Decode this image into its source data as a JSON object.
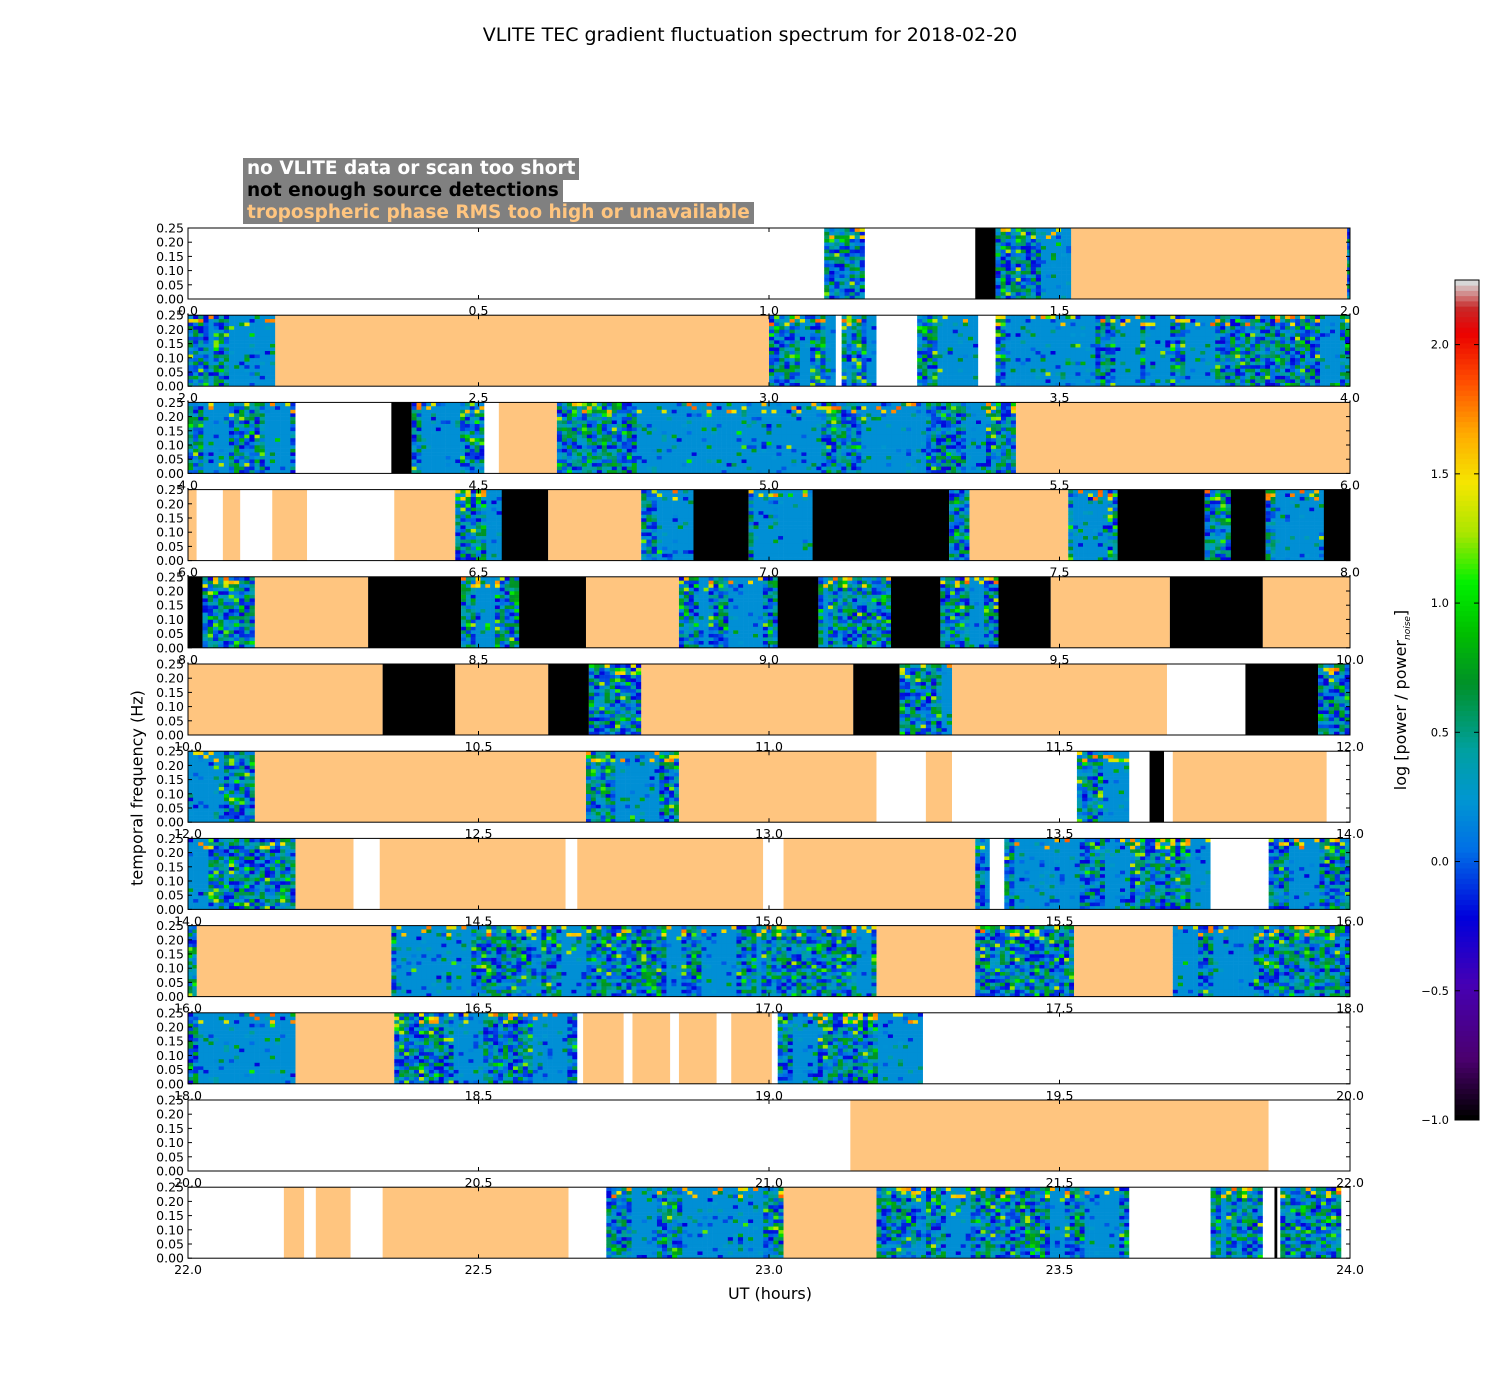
{
  "chart_data": {
    "type": "heatmap",
    "title": "VLITE TEC gradient fluctuation spectrum for 2018-02-20",
    "xlabel": "UT (hours)",
    "ylabel": "temporal frequency (Hz)",
    "colorbar_label_main": "log [power / power",
    "colorbar_label_sub": "noise",
    "colorbar_label_end": "]",
    "colorbar_range": [
      -1.0,
      2.25
    ],
    "colorbar_ticks": [
      "−1.0",
      "−0.5",
      "0.0",
      "0.5",
      "1.0",
      "1.5",
      "2.0"
    ],
    "ylim": [
      0,
      0.25
    ],
    "yticks": [
      "0.00",
      "0.05",
      "0.10",
      "0.15",
      "0.20",
      "0.25"
    ],
    "legend": [
      {
        "label": "no VLITE data or scan too short",
        "color": "#ffffff"
      },
      {
        "label": "not enough source detections",
        "color": "#000000"
      },
      {
        "label": "tropospheric phase RMS too high or unavailable",
        "color": "#ffc57f"
      }
    ],
    "colors": {
      "flag_none": "#ffffff",
      "flag_detections": "#000000",
      "flag_rms": "#ffc57f",
      "legend_box": "#808080"
    },
    "panels": [
      {
        "xlim": [
          0,
          2
        ],
        "xticks": [
          "0.0",
          "0.5",
          "1.0",
          "1.5",
          "2.0"
        ],
        "segments": [
          [
            0,
            1.095,
            "W"
          ],
          [
            1.095,
            1.165,
            "D"
          ],
          [
            1.165,
            1.355,
            "W"
          ],
          [
            1.355,
            1.39,
            "B"
          ],
          [
            1.39,
            1.52,
            "D"
          ],
          [
            1.52,
            1.995,
            "O"
          ],
          [
            1.995,
            2.0,
            "D"
          ]
        ]
      },
      {
        "xlim": [
          2,
          4
        ],
        "xticks": [
          "2.0",
          "2.5",
          "3.0",
          "3.5",
          "4.0"
        ],
        "segments": [
          [
            2.0,
            2.15,
            "D"
          ],
          [
            2.15,
            3.0,
            "O"
          ],
          [
            3.0,
            3.115,
            "D"
          ],
          [
            3.115,
            3.125,
            "W"
          ],
          [
            3.125,
            3.185,
            "D"
          ],
          [
            3.185,
            3.255,
            "W"
          ],
          [
            3.255,
            3.36,
            "D"
          ],
          [
            3.36,
            3.39,
            "W"
          ],
          [
            3.39,
            4.0,
            "D"
          ]
        ]
      },
      {
        "xlim": [
          4,
          6
        ],
        "xticks": [
          "4.0",
          "4.5",
          "5.0",
          "5.5",
          "6.0"
        ],
        "segments": [
          [
            4.0,
            4.185,
            "D"
          ],
          [
            4.185,
            4.35,
            "W"
          ],
          [
            4.35,
            4.385,
            "B"
          ],
          [
            4.385,
            4.51,
            "D"
          ],
          [
            4.51,
            4.535,
            "W"
          ],
          [
            4.535,
            4.635,
            "O"
          ],
          [
            4.635,
            5.425,
            "D"
          ],
          [
            5.425,
            6.0,
            "O"
          ]
        ]
      },
      {
        "xlim": [
          6,
          8
        ],
        "xticks": [
          "6.0",
          "6.5",
          "7.0",
          "7.5",
          "8.0"
        ],
        "segments": [
          [
            6.0,
            6.015,
            "O"
          ],
          [
            6.015,
            6.06,
            "W"
          ],
          [
            6.06,
            6.09,
            "O"
          ],
          [
            6.09,
            6.145,
            "W"
          ],
          [
            6.145,
            6.205,
            "O"
          ],
          [
            6.205,
            6.355,
            "W"
          ],
          [
            6.355,
            6.46,
            "O"
          ],
          [
            6.46,
            6.54,
            "D"
          ],
          [
            6.54,
            6.62,
            "B"
          ],
          [
            6.62,
            6.78,
            "O"
          ],
          [
            6.78,
            6.87,
            "D"
          ],
          [
            6.87,
            6.965,
            "B"
          ],
          [
            6.965,
            7.075,
            "D"
          ],
          [
            7.075,
            7.31,
            "B"
          ],
          [
            7.31,
            7.345,
            "D"
          ],
          [
            7.345,
            7.515,
            "O"
          ],
          [
            7.515,
            7.6,
            "D"
          ],
          [
            7.6,
            7.75,
            "B"
          ],
          [
            7.75,
            7.795,
            "D"
          ],
          [
            7.795,
            7.855,
            "B"
          ],
          [
            7.855,
            7.955,
            "D"
          ],
          [
            7.955,
            8.0,
            "B"
          ]
        ]
      },
      {
        "xlim": [
          8,
          10
        ],
        "xticks": [
          "8.0",
          "8.5",
          "9.0",
          "9.5",
          "10.0"
        ],
        "segments": [
          [
            8.0,
            8.025,
            "B"
          ],
          [
            8.025,
            8.115,
            "D"
          ],
          [
            8.115,
            8.31,
            "O"
          ],
          [
            8.31,
            8.47,
            "B"
          ],
          [
            8.47,
            8.57,
            "D"
          ],
          [
            8.57,
            8.685,
            "B"
          ],
          [
            8.685,
            8.845,
            "O"
          ],
          [
            8.845,
            9.015,
            "D"
          ],
          [
            9.015,
            9.085,
            "B"
          ],
          [
            9.085,
            9.21,
            "D"
          ],
          [
            9.21,
            9.295,
            "B"
          ],
          [
            9.295,
            9.395,
            "D"
          ],
          [
            9.395,
            9.485,
            "B"
          ],
          [
            9.485,
            9.69,
            "O"
          ],
          [
            9.69,
            9.85,
            "B"
          ],
          [
            9.85,
            10.0,
            "O"
          ]
        ]
      },
      {
        "xlim": [
          10,
          12
        ],
        "xticks": [
          "10.0",
          "10.5",
          "11.0",
          "11.5",
          "12.0"
        ],
        "segments": [
          [
            10.0,
            10.335,
            "O"
          ],
          [
            10.335,
            10.46,
            "B"
          ],
          [
            10.46,
            10.62,
            "O"
          ],
          [
            10.62,
            10.69,
            "B"
          ],
          [
            10.69,
            10.78,
            "D"
          ],
          [
            10.78,
            11.145,
            "O"
          ],
          [
            11.145,
            11.225,
            "B"
          ],
          [
            11.225,
            11.315,
            "D"
          ],
          [
            11.315,
            11.685,
            "O"
          ],
          [
            11.685,
            11.82,
            "W"
          ],
          [
            11.82,
            11.945,
            "B"
          ],
          [
            11.945,
            12.0,
            "D"
          ]
        ]
      },
      {
        "xlim": [
          12,
          14
        ],
        "xticks": [
          "12.0",
          "12.5",
          "13.0",
          "13.5",
          "14.0"
        ],
        "segments": [
          [
            12.0,
            12.115,
            "D"
          ],
          [
            12.115,
            12.685,
            "O"
          ],
          [
            12.685,
            12.845,
            "D"
          ],
          [
            12.845,
            13.185,
            "O"
          ],
          [
            13.185,
            13.27,
            "W"
          ],
          [
            13.27,
            13.315,
            "O"
          ],
          [
            13.315,
            13.53,
            "W"
          ],
          [
            13.53,
            13.62,
            "D"
          ],
          [
            13.62,
            13.655,
            "W"
          ],
          [
            13.655,
            13.68,
            "B"
          ],
          [
            13.68,
            13.695,
            "W"
          ],
          [
            13.695,
            13.96,
            "O"
          ],
          [
            13.96,
            14.0,
            "W"
          ]
        ]
      },
      {
        "xlim": [
          14,
          16
        ],
        "xticks": [
          "14.0",
          "14.5",
          "15.0",
          "15.5",
          "16.0"
        ],
        "segments": [
          [
            14.0,
            14.185,
            "D"
          ],
          [
            14.185,
            14.285,
            "O"
          ],
          [
            14.285,
            14.33,
            "W"
          ],
          [
            14.33,
            14.65,
            "O"
          ],
          [
            14.65,
            14.67,
            "W"
          ],
          [
            14.67,
            14.99,
            "O"
          ],
          [
            14.99,
            15.025,
            "W"
          ],
          [
            15.025,
            15.355,
            "O"
          ],
          [
            15.355,
            15.38,
            "D"
          ],
          [
            15.38,
            15.405,
            "W"
          ],
          [
            15.405,
            15.76,
            "D"
          ],
          [
            15.76,
            15.86,
            "W"
          ],
          [
            15.86,
            16.0,
            "D"
          ]
        ]
      },
      {
        "xlim": [
          16,
          18
        ],
        "xticks": [
          "16.0",
          "16.5",
          "17.0",
          "17.5",
          "18.0"
        ],
        "segments": [
          [
            16.0,
            16.015,
            "D"
          ],
          [
            16.015,
            16.35,
            "O"
          ],
          [
            16.35,
            17.185,
            "D"
          ],
          [
            17.185,
            17.355,
            "O"
          ],
          [
            17.355,
            17.525,
            "D"
          ],
          [
            17.525,
            17.695,
            "O"
          ],
          [
            17.695,
            18.0,
            "D"
          ]
        ]
      },
      {
        "xlim": [
          18,
          20
        ],
        "xticks": [
          "18.0",
          "18.5",
          "19.0",
          "19.5",
          "20.0"
        ],
        "segments": [
          [
            18.0,
            18.185,
            "D"
          ],
          [
            18.185,
            18.355,
            "O"
          ],
          [
            18.355,
            18.67,
            "D"
          ],
          [
            18.67,
            18.68,
            "W"
          ],
          [
            18.68,
            18.75,
            "O"
          ],
          [
            18.75,
            18.765,
            "W"
          ],
          [
            18.765,
            18.83,
            "O"
          ],
          [
            18.83,
            18.845,
            "W"
          ],
          [
            18.845,
            18.91,
            "O"
          ],
          [
            18.91,
            18.935,
            "W"
          ],
          [
            18.935,
            19.005,
            "O"
          ],
          [
            19.005,
            19.015,
            "W"
          ],
          [
            19.015,
            19.265,
            "D"
          ],
          [
            19.265,
            20.0,
            "W"
          ]
        ]
      },
      {
        "xlim": [
          20,
          22
        ],
        "xticks": [
          "20.0",
          "20.5",
          "21.0",
          "21.5",
          "22.0"
        ],
        "segments": [
          [
            20.0,
            21.14,
            "W"
          ],
          [
            21.14,
            21.86,
            "O"
          ],
          [
            21.86,
            22.0,
            "W"
          ]
        ]
      },
      {
        "xlim": [
          22,
          24
        ],
        "xticks": [
          "22.0",
          "22.5",
          "23.0",
          "23.5",
          "24.0"
        ],
        "segments": [
          [
            22.0,
            22.165,
            "W"
          ],
          [
            22.165,
            22.2,
            "O"
          ],
          [
            22.2,
            22.22,
            "W"
          ],
          [
            22.22,
            22.28,
            "O"
          ],
          [
            22.28,
            22.335,
            "W"
          ],
          [
            22.335,
            22.655,
            "O"
          ],
          [
            22.655,
            22.72,
            "W"
          ],
          [
            22.72,
            23.025,
            "D"
          ],
          [
            23.025,
            23.185,
            "O"
          ],
          [
            23.185,
            23.62,
            "D"
          ],
          [
            23.62,
            23.76,
            "W"
          ],
          [
            23.76,
            23.85,
            "D"
          ],
          [
            23.85,
            23.87,
            "W"
          ],
          [
            23.87,
            23.875,
            "B"
          ],
          [
            23.875,
            23.88,
            "W"
          ],
          [
            23.88,
            23.985,
            "D"
          ],
          [
            23.985,
            24.0,
            "W"
          ]
        ]
      }
    ]
  }
}
